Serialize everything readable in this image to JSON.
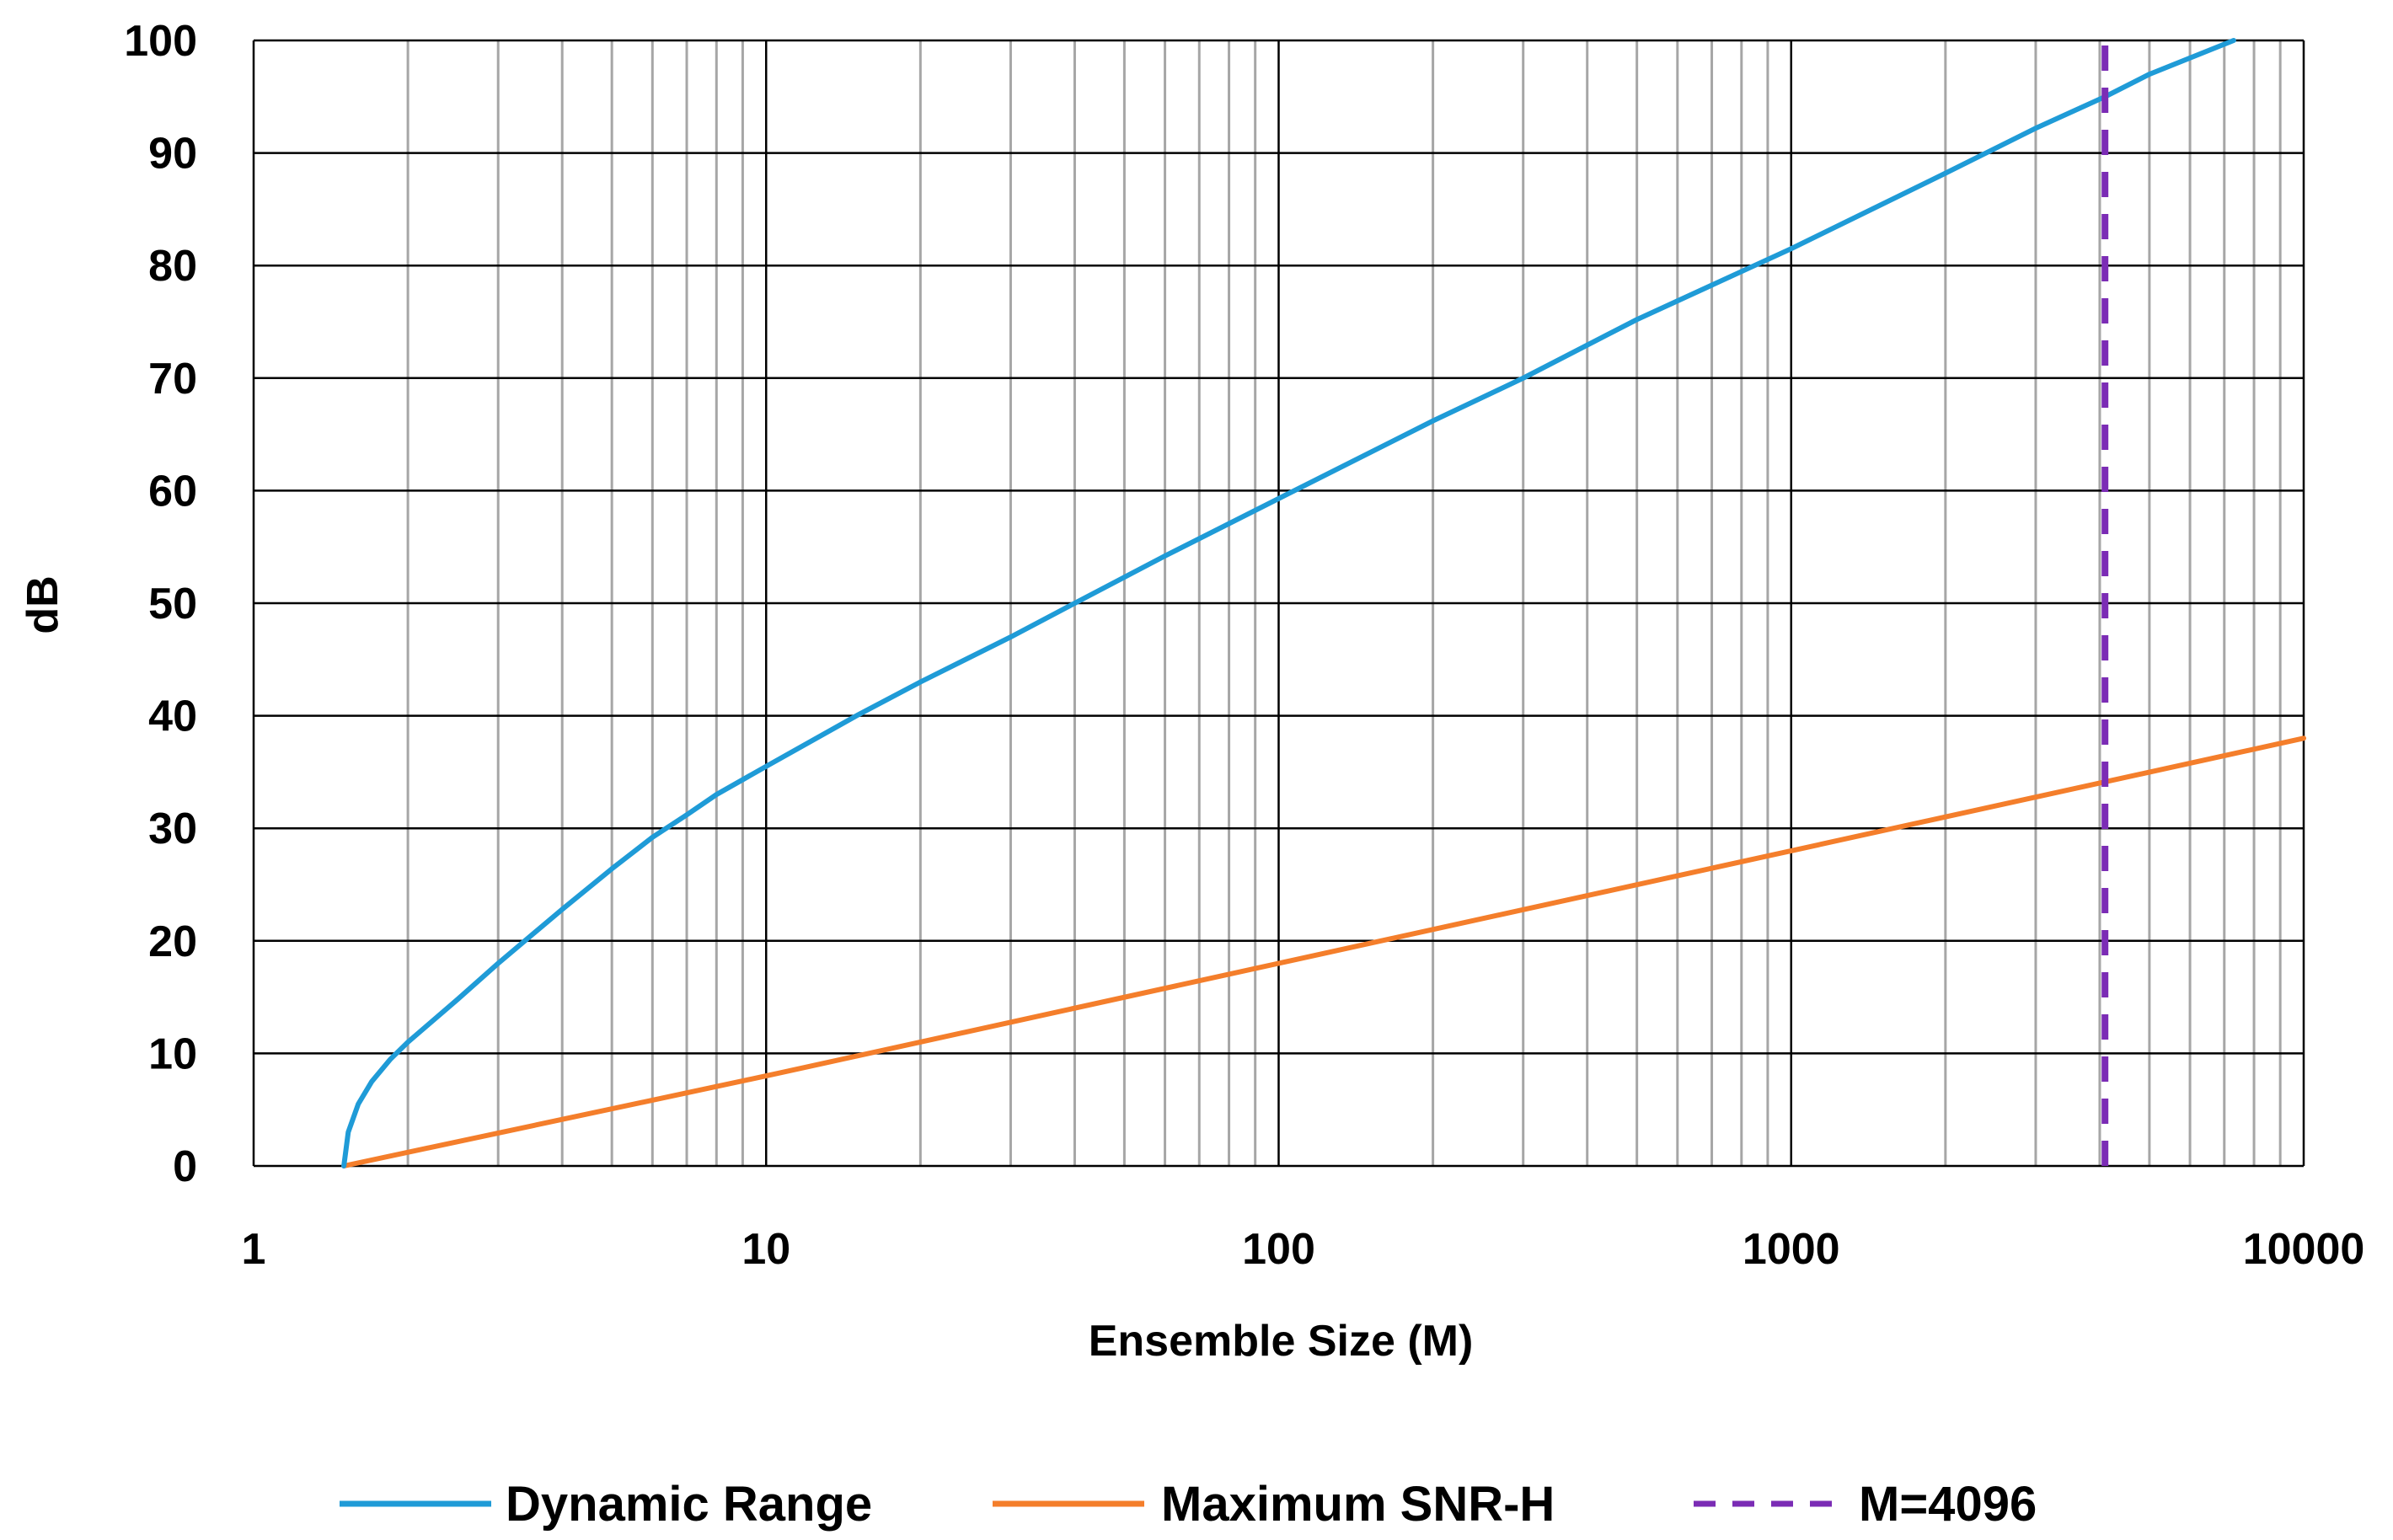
{
  "chart_data": {
    "type": "line",
    "title": "",
    "xlabel": "Ensemble Size (M)",
    "ylabel": "dB",
    "xscale": "log",
    "xlim": [
      1,
      10000
    ],
    "ylim": [
      0,
      100
    ],
    "x_ticks": [
      "1",
      "10",
      "100",
      "1000",
      "10000"
    ],
    "y_ticks": [
      "0",
      "10",
      "20",
      "30",
      "40",
      "50",
      "60",
      "70",
      "80",
      "90",
      "100"
    ],
    "grid": true,
    "legend_position": "bottom",
    "series": [
      {
        "name": "Dynamic Range",
        "color": "#1f9bd7",
        "style": "solid",
        "points": [
          [
            1.5,
            0
          ],
          [
            1.53,
            3
          ],
          [
            1.6,
            5.5
          ],
          [
            1.7,
            7.5
          ],
          [
            1.85,
            9.5
          ],
          [
            2,
            11
          ],
          [
            2.5,
            14.8
          ],
          [
            3,
            18
          ],
          [
            4,
            22.8
          ],
          [
            5,
            26.4
          ],
          [
            6,
            29.2
          ],
          [
            7,
            31.2
          ],
          [
            8,
            33
          ],
          [
            10,
            35.5
          ],
          [
            15,
            40
          ],
          [
            20,
            43
          ],
          [
            30,
            47
          ],
          [
            40,
            50
          ],
          [
            60,
            54.2
          ],
          [
            100,
            59.3
          ],
          [
            200,
            66.2
          ],
          [
            300,
            70
          ],
          [
            500,
            75.2
          ],
          [
            1000,
            81.5
          ],
          [
            2000,
            88.2
          ],
          [
            3000,
            92.2
          ],
          [
            4096,
            95
          ],
          [
            5000,
            97
          ],
          [
            7300,
            100
          ]
        ]
      },
      {
        "name": "Maximum SNR-H",
        "color": "#f47e2b",
        "style": "solid",
        "points": [
          [
            1.5,
            0
          ],
          [
            10,
            8
          ],
          [
            100,
            18
          ],
          [
            1000,
            28
          ],
          [
            10000,
            38
          ]
        ]
      },
      {
        "name": "M=4096",
        "color": "#7b2cb5",
        "style": "dashed",
        "points": [
          [
            4096,
            0
          ],
          [
            4096,
            100
          ]
        ]
      }
    ]
  }
}
